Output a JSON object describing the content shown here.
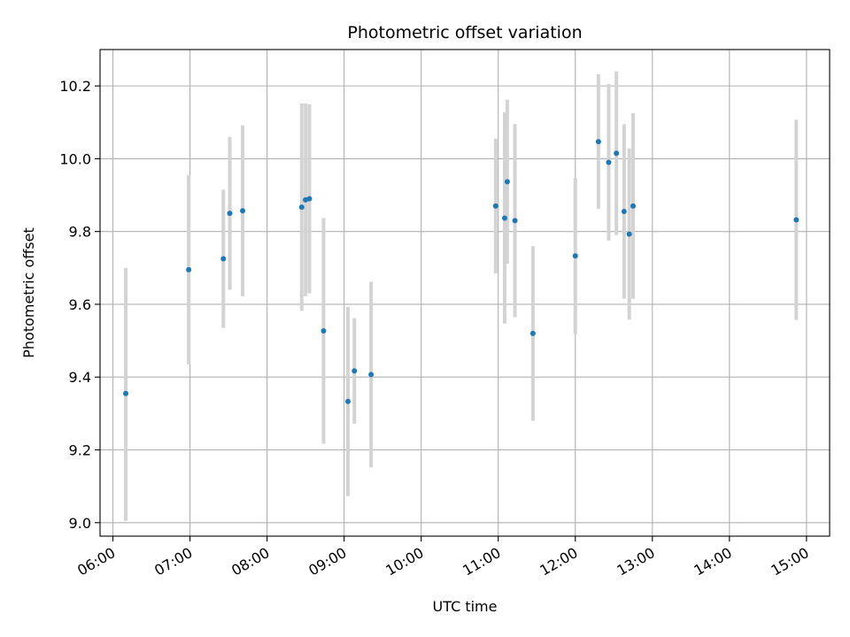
{
  "chart_data": {
    "type": "scatter",
    "title": "Photometric offset variation",
    "xlabel": "UTC time",
    "ylabel": "Photometric offset",
    "x_unit": "hours UTC",
    "xlim": [
      "05:50",
      "15:18"
    ],
    "ylim": [
      8.963,
      10.3
    ],
    "grid": true,
    "x_ticks": [
      "06:00",
      "07:00",
      "08:00",
      "09:00",
      "10:00",
      "11:00",
      "12:00",
      "13:00",
      "14:00",
      "15:00"
    ],
    "y_ticks": [
      "9.0",
      "9.2",
      "9.4",
      "9.6",
      "9.8",
      "10.0",
      "10.2"
    ],
    "colors": {
      "point": "#1f77b4",
      "errorbar": "#d3d3d3"
    },
    "series": [
      {
        "points": [
          {
            "x": "06:10",
            "y": 9.355,
            "lo": 9.005,
            "hi": 9.7
          },
          {
            "x": "06:59",
            "y": 9.695,
            "lo": 9.435,
            "hi": 9.955
          },
          {
            "x": "07:26",
            "y": 9.725,
            "lo": 9.535,
            "hi": 9.915
          },
          {
            "x": "07:31",
            "y": 9.85,
            "lo": 9.64,
            "hi": 10.06
          },
          {
            "x": "07:41",
            "y": 9.857,
            "lo": 9.622,
            "hi": 10.092
          },
          {
            "x": "08:27",
            "y": 9.867,
            "lo": 9.582,
            "hi": 10.152
          },
          {
            "x": "08:30",
            "y": 9.887,
            "lo": 9.622,
            "hi": 10.152
          },
          {
            "x": "08:33",
            "y": 9.89,
            "lo": 9.63,
            "hi": 10.15
          },
          {
            "x": "08:44",
            "y": 9.527,
            "lo": 9.217,
            "hi": 9.837
          },
          {
            "x": "09:03",
            "y": 9.333,
            "lo": 9.073,
            "hi": 9.593
          },
          {
            "x": "09:08",
            "y": 9.417,
            "lo": 9.272,
            "hi": 9.562
          },
          {
            "x": "09:21",
            "y": 9.407,
            "lo": 9.152,
            "hi": 9.662
          },
          {
            "x": "10:58",
            "y": 9.87,
            "lo": 9.685,
            "hi": 10.055
          },
          {
            "x": "11:05",
            "y": 9.837,
            "lo": 9.547,
            "hi": 10.127
          },
          {
            "x": "11:07",
            "y": 9.937,
            "lo": 9.712,
            "hi": 10.162
          },
          {
            "x": "11:13",
            "y": 9.83,
            "lo": 9.565,
            "hi": 10.095
          },
          {
            "x": "11:27",
            "y": 9.52,
            "lo": 9.28,
            "hi": 9.76
          },
          {
            "x": "12:00",
            "y": 9.733,
            "lo": 9.518,
            "hi": 9.948
          },
          {
            "x": "12:18",
            "y": 10.047,
            "lo": 9.862,
            "hi": 10.232
          },
          {
            "x": "12:26",
            "y": 9.99,
            "lo": 9.775,
            "hi": 10.205
          },
          {
            "x": "12:32",
            "y": 10.015,
            "lo": 9.79,
            "hi": 10.24
          },
          {
            "x": "12:38",
            "y": 9.855,
            "lo": 9.615,
            "hi": 10.095
          },
          {
            "x": "12:42",
            "y": 9.793,
            "lo": 9.558,
            "hi": 10.028
          },
          {
            "x": "12:45",
            "y": 9.87,
            "lo": 9.615,
            "hi": 10.125
          },
          {
            "x": "14:52",
            "y": 9.832,
            "lo": 9.557,
            "hi": 10.107
          }
        ]
      }
    ]
  }
}
